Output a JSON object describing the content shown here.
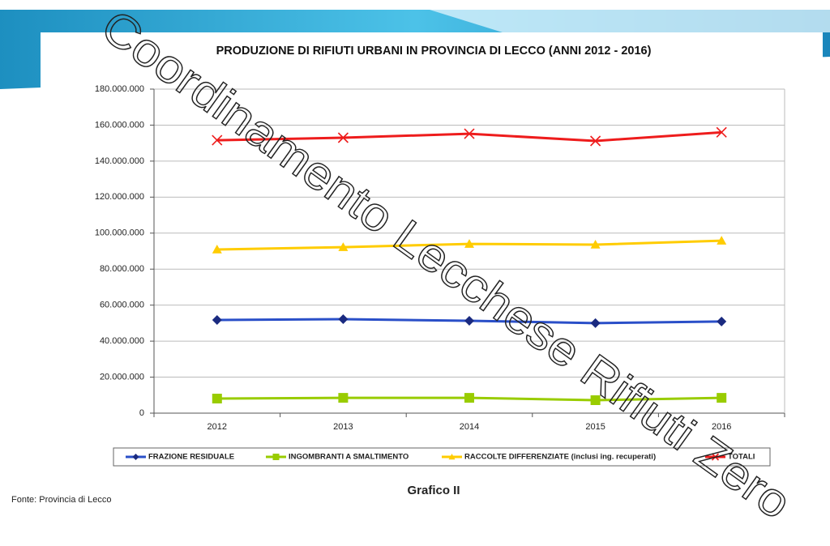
{
  "chart_data": {
    "type": "line",
    "title": "PRODUZIONE DI RIFIUTI URBANI IN PROVINCIA DI LECCO (ANNI 2012 - 2016)",
    "caption": "Grafico II",
    "source": "Fonte: Provincia di Lecco",
    "watermark": "Coordinamento Lecchese Rifiuti Zero",
    "categories": [
      "2012",
      "2013",
      "2014",
      "2015",
      "2016"
    ],
    "series": [
      {
        "name": "FRAZIONE RESIDUALE",
        "color": "#2a4fc8",
        "marker": "diamond",
        "values": [
          51750000,
          52200000,
          51300000,
          50000000,
          50900000
        ]
      },
      {
        "name": "INGOMBRANTI A SMALTIMENTO",
        "color": "#99cc00",
        "marker": "square",
        "values": [
          8100000,
          8500000,
          8500000,
          7200000,
          8500000
        ]
      },
      {
        "name": "RACCOLTE DIFFERENZIATE (inclusi ing. recuperati)",
        "color": "#ffcc00",
        "marker": "triangle",
        "values": [
          90900000,
          92200000,
          94000000,
          93600000,
          95800000
        ]
      },
      {
        "name": "TOTALI",
        "color": "#ee1c1c",
        "marker": "x",
        "values": [
          151600000,
          153000000,
          155200000,
          151200000,
          156000000
        ]
      }
    ],
    "ylim": [
      0,
      180000000
    ],
    "yticks": [
      0,
      {
        "value": 20000000,
        "label": "20.000.000"
      },
      {
        "value": 40000000,
        "label": "40.000.000"
      },
      {
        "value": 60000000,
        "label": "60.000.000"
      },
      {
        "value": 80000000,
        "label": "80.000.000"
      },
      {
        "value": 100000000,
        "label": "100.000.000"
      },
      {
        "value": 120000000,
        "label": "120.000.000"
      },
      {
        "value": 140000000,
        "label": "140.000.000"
      },
      {
        "value": 160000000,
        "label": "160.000.000"
      },
      {
        "value": 180000000,
        "label": "180.000.000"
      }
    ],
    "grid": true,
    "legend": "bottom"
  }
}
